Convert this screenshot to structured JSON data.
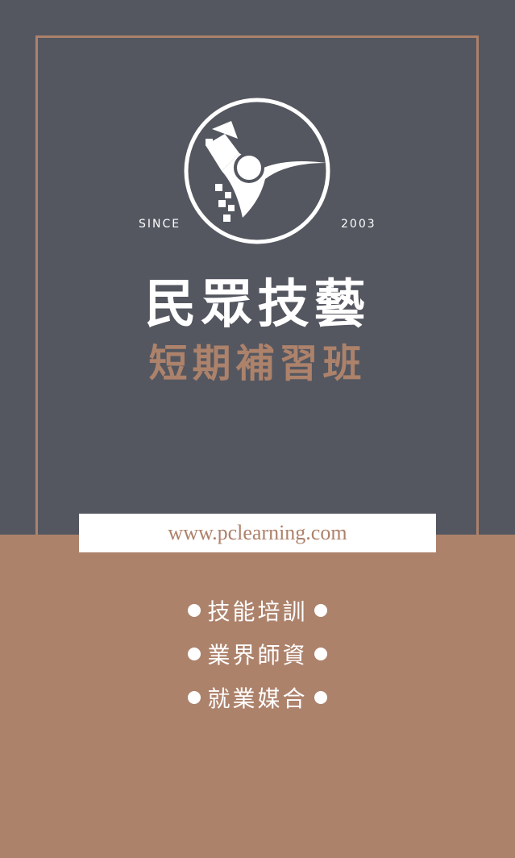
{
  "colors": {
    "top_background": "#545760",
    "bottom_background": "#ad826b",
    "frame": "#ad826b",
    "accent": "#ad826b",
    "white": "#ffffff"
  },
  "logo": {
    "icon": "bird-emblem-icon",
    "since_label": "SINCE",
    "year_label": "2003"
  },
  "title": "民眾技藝",
  "subtitle": "短期補習班",
  "website": "www.pclearning.com",
  "features": [
    {
      "label": "技能培訓"
    },
    {
      "label": "業界師資"
    },
    {
      "label": "就業媒合"
    }
  ]
}
